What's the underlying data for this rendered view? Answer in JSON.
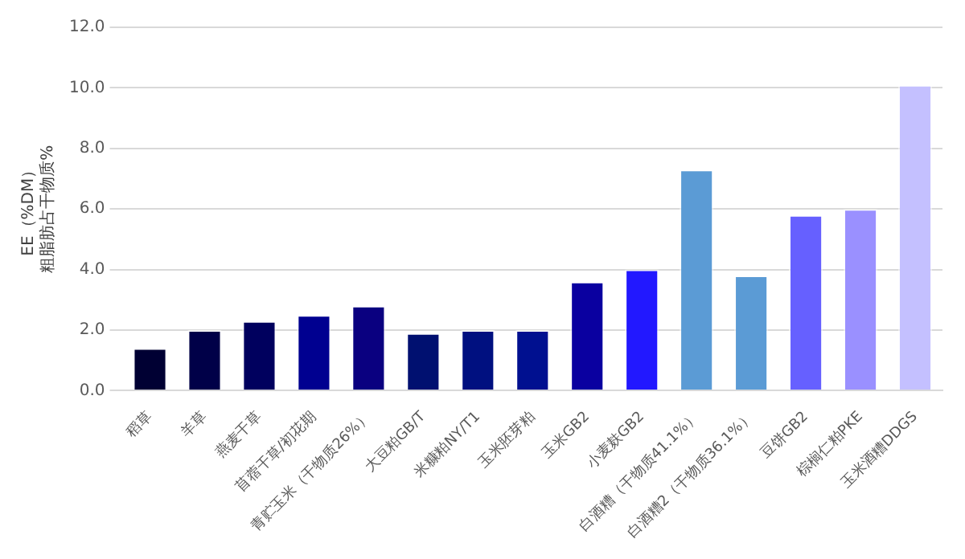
{
  "chart_data": {
    "type": "bar",
    "ylabel": "EE（%DM）粗脂肪占干物质%",
    "categories": [
      "稻草",
      "羊草",
      "燕麦干草",
      "苜蓿干草/初花期",
      "青贮玉米（干物质26%）",
      "大豆粕GB/T",
      "米糠粕NY/T1",
      "玉米胚芽粕",
      "玉米GB2",
      "小麦麸GB2",
      "白酒糟（干物质41.1%）",
      "白酒糟2（干物质36.1%）",
      "豆饼GB2",
      "棕榈仁粕PKE",
      "玉米酒糟DDGS"
    ],
    "values": [
      1.4,
      2.0,
      2.3,
      2.5,
      2.8,
      1.9,
      2.0,
      2.0,
      3.6,
      4.0,
      7.3,
      3.8,
      5.8,
      6.0,
      10.1
    ],
    "colors": [
      "#000033",
      "#000048",
      "#00005e",
      "#000090",
      "#0a0080",
      "#001070",
      "#001080",
      "#001090",
      "#0a00a0",
      "#2218ff",
      "#5b9bd5",
      "#5b9bd5",
      "#6660ff",
      "#9a90ff",
      "#c4c0ff"
    ],
    "ylim": [
      0,
      12
    ],
    "yticks": [
      {
        "value": 0,
        "label": "0.0"
      },
      {
        "value": 2,
        "label": "2.0"
      },
      {
        "value": 4,
        "label": "4.0"
      },
      {
        "value": 6,
        "label": "6.0"
      },
      {
        "value": 8,
        "label": "8.0"
      },
      {
        "value": 10,
        "label": "10.0"
      },
      {
        "value": 12,
        "label": "12.0"
      }
    ],
    "grid": "y",
    "legend": false
  }
}
